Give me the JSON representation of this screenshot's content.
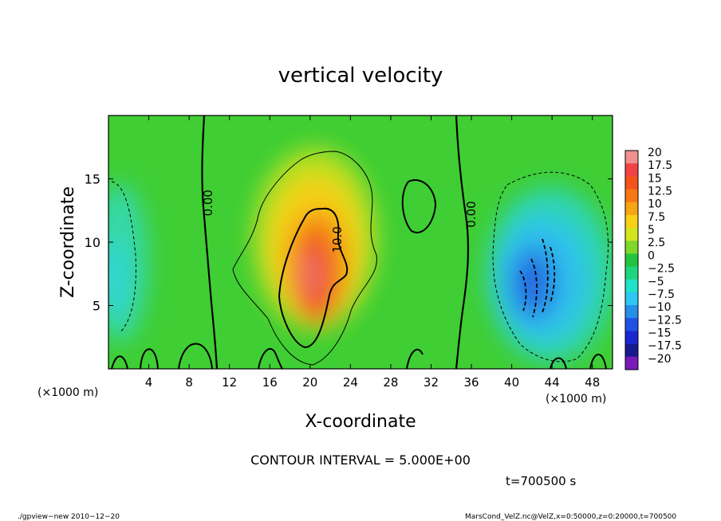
{
  "chart_data": {
    "type": "heatmap",
    "title": "vertical velocity",
    "xlabel": "X-coordinate",
    "ylabel": "Z-coordinate",
    "x_unit": "(×1000 m)",
    "y_unit": "(×1000 m)",
    "xlim": [
      0,
      50
    ],
    "ylim": [
      0,
      20
    ],
    "x_ticks": [
      4,
      8,
      12,
      16,
      20,
      24,
      28,
      32,
      36,
      40,
      44,
      48
    ],
    "y_ticks": [
      5,
      10,
      15
    ],
    "colorbar": {
      "levels": [
        20,
        17.5,
        15,
        12.5,
        10,
        7.5,
        5,
        2.5,
        0,
        -2.5,
        -5,
        -7.5,
        -10,
        -12.5,
        -15,
        -17.5,
        -20
      ],
      "labels": [
        "20",
        "17.5",
        "15",
        "12.5",
        "10",
        "7.5",
        "5",
        "2.5",
        "0",
        "−2.5",
        "−5",
        "−7.5",
        "−10",
        "−12.5",
        "−15",
        "−17.5",
        "−20"
      ],
      "colors": [
        "#f08f8f",
        "#f04444",
        "#f2541a",
        "#f77714",
        "#f8a514",
        "#f7d114",
        "#d2e61e",
        "#7fd82a",
        "#24c33f",
        "#1ed57d",
        "#1ee3c8",
        "#2ec6f2",
        "#268fe8",
        "#1f52e4",
        "#1a26d2",
        "#171a8c",
        "#7a1ab8"
      ]
    },
    "features": [
      {
        "label": "0.00",
        "value": 0,
        "x": 9.9,
        "z": 13.1
      },
      {
        "label": "0.00",
        "value": 0,
        "x": 36.0,
        "z": 12.2
      },
      {
        "label": "10.0",
        "value": 10,
        "x": 22.7,
        "z": 10.2
      }
    ],
    "contour_interval": 5,
    "max_w_approx": 15,
    "min_w_approx": -12.5
  },
  "annotations": {
    "contour_interval": "CONTOUR INTERVAL = 5.000E+00",
    "time": "t=700500  s",
    "footer_left": "./gpview−new   2010−12−20",
    "footer_right": "MarsCond_VelZ.nc@VelZ,x=0:50000,z=0:20000,t=700500"
  }
}
